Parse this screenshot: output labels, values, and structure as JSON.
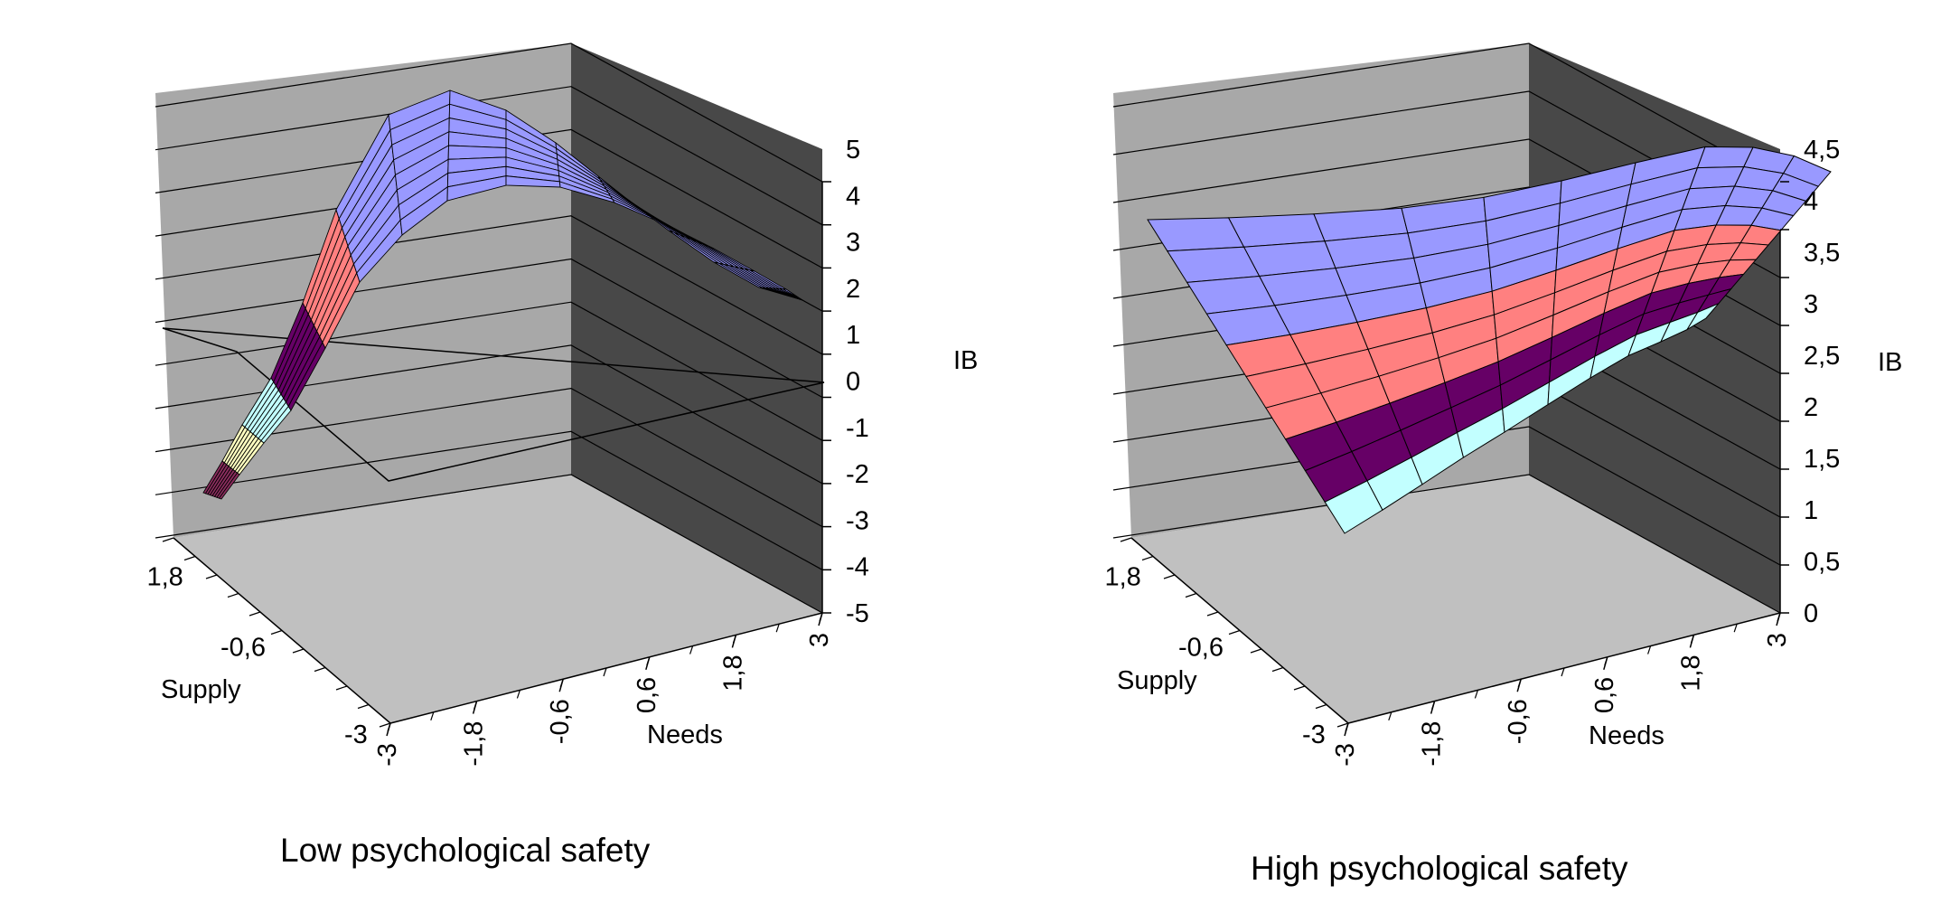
{
  "chart_data": [
    {
      "type": "surface",
      "caption": "Low psychological safety",
      "xlabel": "Needs",
      "ylabel": "Supply",
      "zlabel": "IB",
      "x_ticks": [
        "-3",
        "-1,8",
        "-0,6",
        "0,6",
        "1,8",
        "3"
      ],
      "y_ticks": [
        "1,8",
        "-0,6",
        "-3"
      ],
      "z_ticks": [
        "-5",
        "-4",
        "-3",
        "-2",
        "-1",
        "0",
        "1",
        "2",
        "3",
        "4",
        "5"
      ],
      "zlim": [
        -5,
        5
      ],
      "grid": true,
      "color_bands": [
        {
          "range": [
            -5,
            -4
          ],
          "color": "#8b2d5e"
        },
        {
          "range": [
            -4,
            -3
          ],
          "color": "#ffffc0"
        },
        {
          "range": [
            -3,
            -2
          ],
          "color": "#c2ffff"
        },
        {
          "range": [
            -2,
            0
          ],
          "color": "#660066"
        },
        {
          "range": [
            0,
            2
          ],
          "color": "#ff8080"
        },
        {
          "range": [
            2,
            5
          ],
          "color": "#9999ff"
        }
      ]
    },
    {
      "type": "surface",
      "caption": "High psychological safety",
      "xlabel": "Needs",
      "ylabel": "Supply",
      "zlabel": "IB",
      "x_ticks": [
        "-3",
        "-1,8",
        "-0,6",
        "0,6",
        "1,8",
        "3"
      ],
      "y_ticks": [
        "1,8",
        "-0,6",
        "-3"
      ],
      "z_ticks": [
        "0",
        "0,5",
        "1",
        "1,5",
        "2",
        "2,5",
        "3",
        "3,5",
        "4",
        "4,5"
      ],
      "zlim": [
        0,
        4.5
      ],
      "grid": true,
      "color_bands": [
        {
          "range": [
            1,
            1.5
          ],
          "color": "#c2ffff"
        },
        {
          "range": [
            1.5,
            2.5
          ],
          "color": "#660066"
        },
        {
          "range": [
            2.5,
            3.5
          ],
          "color": "#ff8080"
        },
        {
          "range": [
            3.5,
            4.5
          ],
          "color": "#9999ff"
        }
      ]
    }
  ]
}
